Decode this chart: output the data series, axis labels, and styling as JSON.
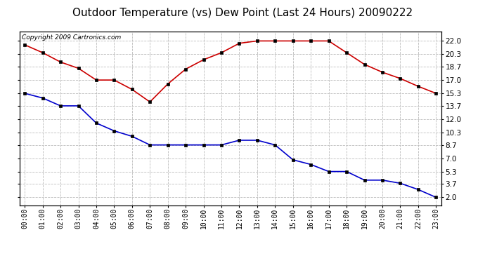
{
  "title": "Outdoor Temperature (vs) Dew Point (Last 24 Hours) 20090222",
  "copyright": "Copyright 2009 Cartronics.com",
  "hours": [
    "00:00",
    "01:00",
    "02:00",
    "03:00",
    "04:00",
    "05:00",
    "06:00",
    "07:00",
    "08:00",
    "09:00",
    "10:00",
    "11:00",
    "12:00",
    "13:00",
    "14:00",
    "15:00",
    "16:00",
    "17:00",
    "18:00",
    "19:00",
    "20:00",
    "21:00",
    "22:00",
    "23:00"
  ],
  "temp": [
    21.5,
    20.5,
    19.3,
    18.5,
    17.0,
    17.0,
    15.8,
    14.2,
    16.5,
    18.4,
    19.6,
    20.5,
    21.7,
    22.0,
    22.0,
    22.0,
    22.0,
    22.0,
    20.5,
    19.0,
    18.0,
    17.2,
    16.2,
    15.3
  ],
  "dewpoint": [
    15.3,
    14.7,
    13.7,
    13.7,
    11.5,
    10.5,
    9.8,
    8.7,
    8.7,
    8.7,
    8.7,
    8.7,
    9.3,
    9.3,
    8.7,
    6.8,
    6.2,
    5.3,
    5.3,
    4.2,
    4.2,
    3.8,
    3.0,
    2.0
  ],
  "yticks": [
    2.0,
    3.7,
    5.3,
    7.0,
    8.7,
    10.3,
    12.0,
    13.7,
    15.3,
    17.0,
    18.7,
    20.3,
    22.0
  ],
  "ytick_labels": [
    "2.0",
    "3.7",
    "5.3",
    "7.0",
    "8.7",
    "10.3",
    "12.0",
    "13.7",
    "15.3",
    "17.0",
    "18.7",
    "20.3",
    "22.0"
  ],
  "ylim": [
    1.0,
    23.2
  ],
  "xlim": [
    -0.3,
    23.3
  ],
  "temp_color": "#cc0000",
  "dew_color": "#0000cc",
  "bg_color": "#ffffff",
  "grid_color": "#bbbbbb",
  "title_fontsize": 11,
  "copyright_fontsize": 6.5,
  "tick_fontsize": 7.5,
  "xtick_fontsize": 7
}
